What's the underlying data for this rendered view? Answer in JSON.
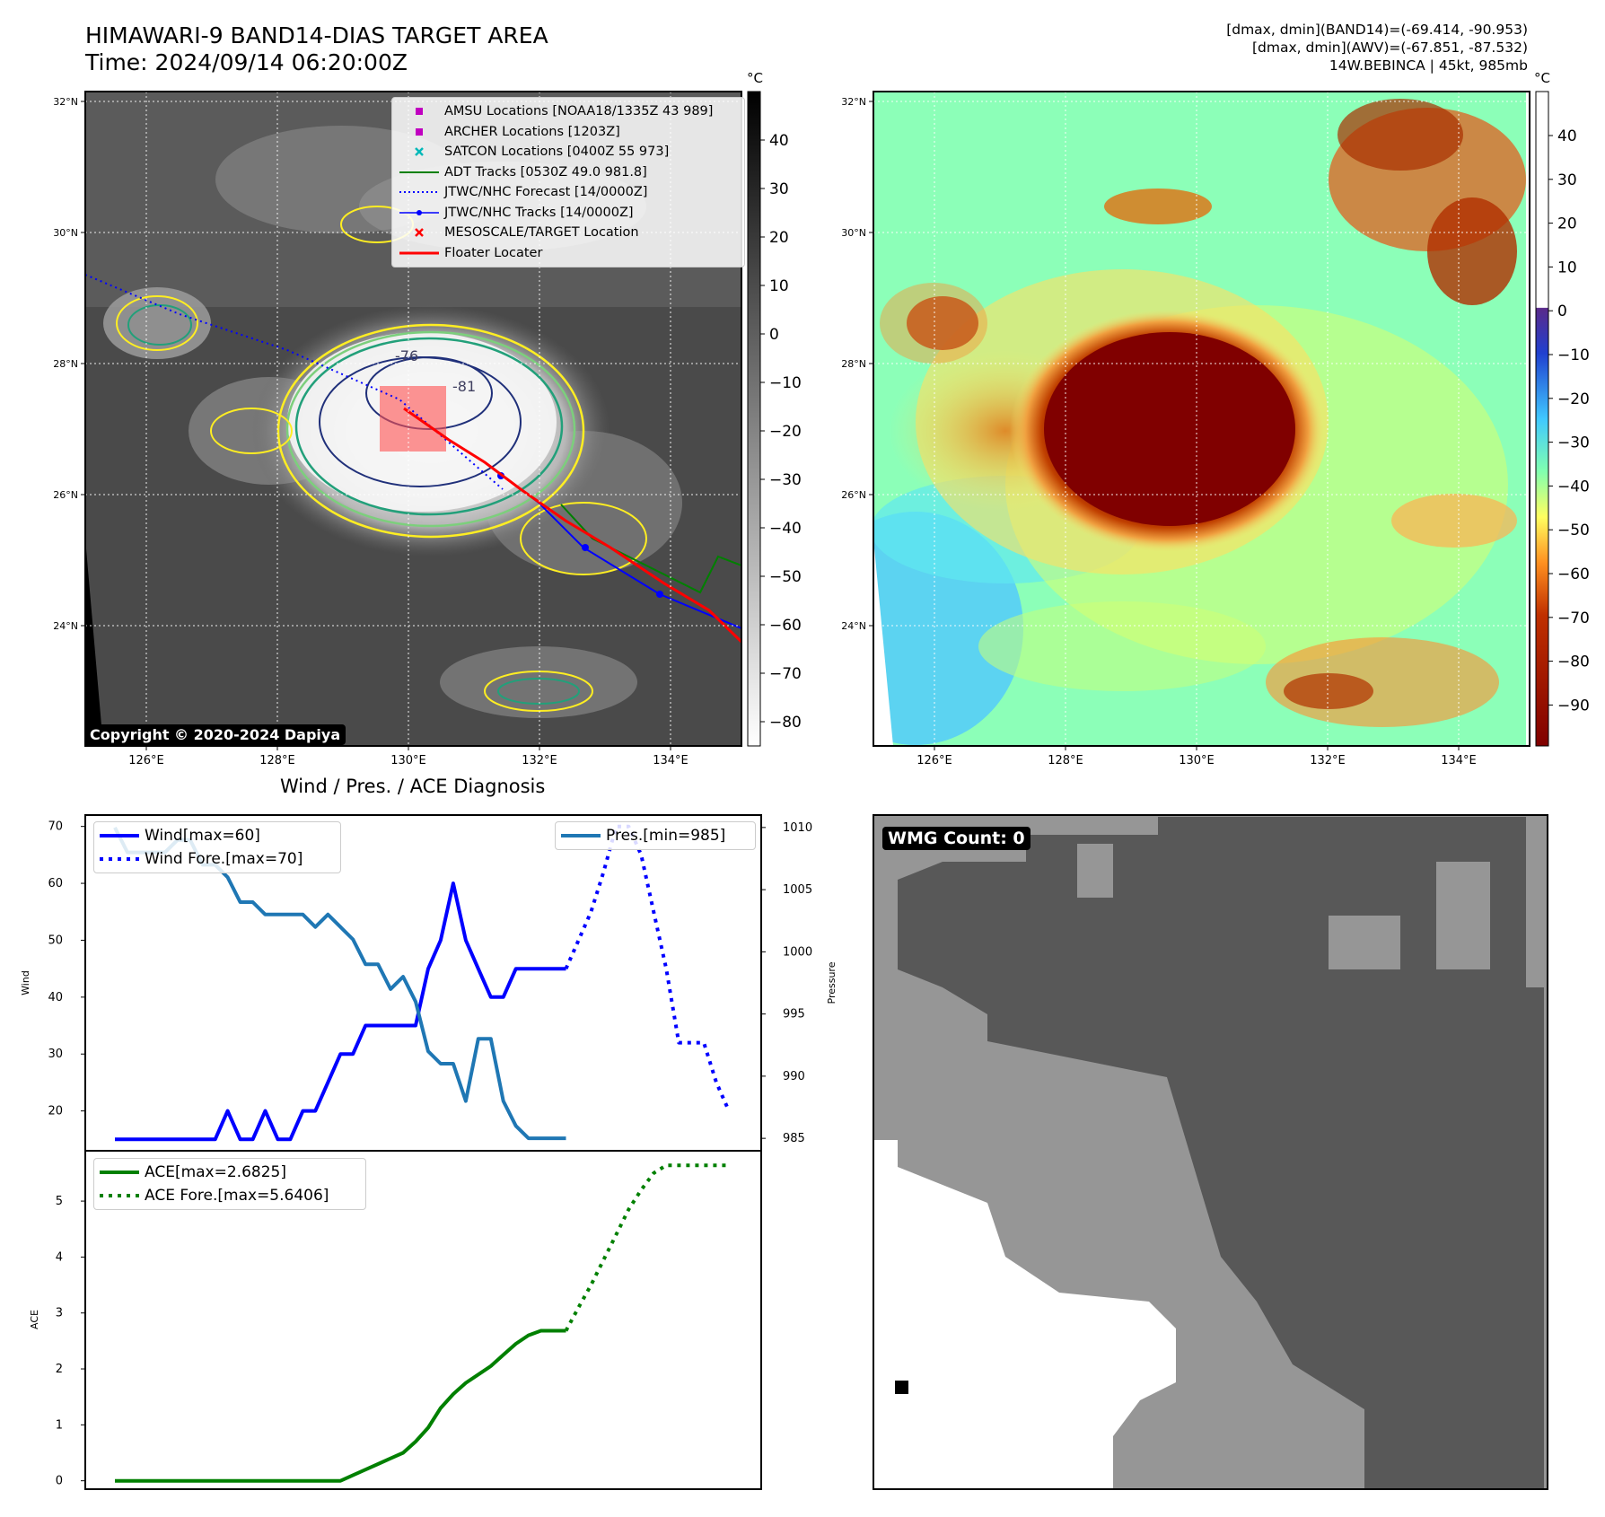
{
  "header": {
    "title_line1": "HIMAWARI-9 BAND14-DIAS TARGET AREA",
    "title_line2": "Time: 2024/09/14 06:20:00Z",
    "right_line1": "[dmax, dmin](BAND14)=(-69.414, -90.953)",
    "right_line2": "[dmax, dmin](AWV)=(-67.851, -87.532)",
    "right_line3": "14W.BEBINCA | 45kt, 985mb"
  },
  "map_axes": {
    "lat_ticks": [
      "32°N",
      "30°N",
      "28°N",
      "26°N",
      "24°N"
    ],
    "lon_ticks": [
      "126°E",
      "128°E",
      "130°E",
      "132°E",
      "134°E"
    ]
  },
  "ir_panel": {
    "copyright": "Copyright © 2020-2024 Dapiya",
    "contour_labels": [
      "-76",
      "-81"
    ],
    "colorbar_unit": "°C",
    "colorbar_ticks": [
      "40",
      "30",
      "20",
      "10",
      "0",
      "−10",
      "−20",
      "−30",
      "−40",
      "−50",
      "−60",
      "−70",
      "−80"
    ],
    "legend": [
      {
        "label": "AMSU Locations [NOAA18/1335Z 43 989]",
        "symbol": "square",
        "color": "#c000c0"
      },
      {
        "label": "ARCHER Locations [1203Z]",
        "symbol": "square",
        "color": "#c000c0"
      },
      {
        "label": "SATCON Locations [0400Z 55 973]",
        "symbol": "x",
        "color": "#00b8b8"
      },
      {
        "label": "ADT Tracks [0530Z 49.0 981.8]",
        "symbol": "line",
        "color": "#008000"
      },
      {
        "label": "JTWC/NHC Forecast [14/0000Z]",
        "symbol": "dotted",
        "color": "#0000ff"
      },
      {
        "label": "JTWC/NHC Tracks [14/0000Z]",
        "symbol": "line-dot",
        "color": "#0000ff"
      },
      {
        "label": "MESOSCALE/TARGET Location",
        "symbol": "x",
        "color": "#ff0000"
      },
      {
        "label": "Floater Locater",
        "symbol": "line",
        "color": "#ff0000"
      }
    ]
  },
  "awv_panel": {
    "colorbar_unit": "°C",
    "colorbar_ticks": [
      "40",
      "30",
      "20",
      "10",
      "0",
      "−10",
      "−20",
      "−30",
      "−40",
      "−50",
      "−60",
      "−70",
      "−80",
      "−90"
    ]
  },
  "wmg_panel": {
    "badge": "WMG Count: 0"
  },
  "diagnosis": {
    "title": "Wind / Pres. / ACE Diagnosis",
    "wind_ylabel": "Wind",
    "pressure_ylabel": "Pressure",
    "ace_ylabel": "ACE",
    "wind_legend": [
      "Wind[max=60]",
      "Wind Fore.[max=70]"
    ],
    "pressure_legend": [
      "Pres.[min=985]"
    ],
    "ace_legend": [
      "ACE[max=2.6825]",
      "ACE Fore.[max=5.6406]"
    ]
  },
  "chart_data": [
    {
      "type": "line",
      "title": "Wind / Pres. / ACE Diagnosis",
      "ylabel": "Wind",
      "ylim": [
        13,
        72
      ],
      "yticks": [
        20,
        30,
        40,
        50,
        60,
        70
      ],
      "x": [
        0,
        1,
        2,
        3,
        4,
        5,
        6,
        7,
        8,
        9,
        10,
        11,
        12,
        13,
        14,
        15,
        16,
        17,
        18,
        19,
        20,
        21,
        22,
        23,
        24,
        25,
        26,
        27,
        28,
        29,
        30,
        31,
        32,
        33,
        34,
        35,
        36,
        37,
        38,
        39,
        40,
        41,
        42,
        43,
        44,
        45,
        46,
        47,
        48,
        49
      ],
      "series": [
        {
          "name": "Wind[max=60]",
          "color": "#0000ff",
          "style": "solid",
          "x": [
            0,
            1,
            2,
            3,
            4,
            5,
            6,
            7,
            8,
            9,
            10,
            11,
            12,
            13,
            14,
            15,
            16,
            17,
            18,
            19,
            20,
            21,
            22,
            23,
            24,
            25,
            26,
            27,
            28,
            29,
            30,
            31,
            32,
            33,
            34,
            35,
            36
          ],
          "values": [
            15,
            15,
            15,
            15,
            15,
            15,
            15,
            15,
            15,
            20,
            15,
            15,
            20,
            15,
            15,
            20,
            20,
            25,
            30,
            30,
            35,
            35,
            35,
            35,
            35,
            45,
            50,
            60,
            50,
            45,
            40,
            40,
            45,
            45,
            45,
            45,
            45
          ]
        },
        {
          "name": "Wind Fore.[max=70]",
          "color": "#0000ff",
          "style": "dotted",
          "x": [
            36,
            37,
            38,
            39,
            40,
            41,
            42,
            43,
            44,
            45,
            46,
            47,
            48,
            49
          ],
          "values": [
            45,
            50,
            55,
            62,
            70,
            70,
            65,
            55,
            45,
            32,
            32,
            32,
            25,
            20
          ]
        }
      ]
    },
    {
      "type": "line",
      "ylabel": "Pressure",
      "ylim": [
        984,
        1011
      ],
      "yticks": [
        985,
        990,
        995,
        1000,
        1005,
        1010
      ],
      "series": [
        {
          "name": "Pres.[min=985]",
          "color": "#1f77b4",
          "style": "solid",
          "x": [
            0,
            1,
            2,
            3,
            4,
            5,
            6,
            7,
            8,
            9,
            10,
            11,
            12,
            13,
            14,
            15,
            16,
            17,
            18,
            19,
            20,
            21,
            22,
            23,
            24,
            25,
            26,
            27,
            28,
            29,
            30,
            31,
            32,
            33,
            34,
            35,
            36
          ],
          "values": [
            1010,
            1008,
            1008,
            1008,
            1008,
            1009,
            1009,
            1007,
            1007,
            1006,
            1004,
            1004,
            1003,
            1003,
            1003,
            1003,
            1002,
            1003,
            1002,
            1001,
            999,
            999,
            997,
            998,
            996,
            992,
            991,
            991,
            988,
            993,
            993,
            988,
            986,
            985,
            985,
            985,
            985
          ]
        }
      ]
    },
    {
      "type": "line",
      "ylabel": "ACE",
      "ylim": [
        -0.15,
        5.9
      ],
      "yticks": [
        0,
        1,
        2,
        3,
        4,
        5
      ],
      "series": [
        {
          "name": "ACE[max=2.6825]",
          "color": "#008000",
          "style": "solid",
          "x": [
            0,
            1,
            2,
            3,
            4,
            5,
            6,
            7,
            8,
            9,
            10,
            11,
            12,
            13,
            14,
            15,
            16,
            17,
            18,
            19,
            20,
            21,
            22,
            23,
            24,
            25,
            26,
            27,
            28,
            29,
            30,
            31,
            32,
            33,
            34,
            35,
            36
          ],
          "values": [
            0,
            0,
            0,
            0,
            0,
            0,
            0,
            0,
            0,
            0,
            0,
            0,
            0,
            0,
            0,
            0,
            0,
            0,
            0,
            0.1,
            0.2,
            0.3,
            0.4,
            0.5,
            0.7,
            0.95,
            1.3,
            1.55,
            1.75,
            1.9,
            2.05,
            2.25,
            2.45,
            2.6,
            2.6825,
            2.6825,
            2.6825
          ]
        },
        {
          "name": "ACE Fore.[max=5.6406]",
          "color": "#008000",
          "style": "dotted",
          "x": [
            36,
            37,
            38,
            39,
            40,
            41,
            42,
            43,
            44,
            45,
            46,
            47,
            48,
            49
          ],
          "values": [
            2.6825,
            3.1,
            3.5,
            3.95,
            4.4,
            4.85,
            5.2,
            5.5,
            5.6406,
            5.6406,
            5.6406,
            5.6406,
            5.6406,
            5.6406
          ]
        }
      ]
    }
  ]
}
